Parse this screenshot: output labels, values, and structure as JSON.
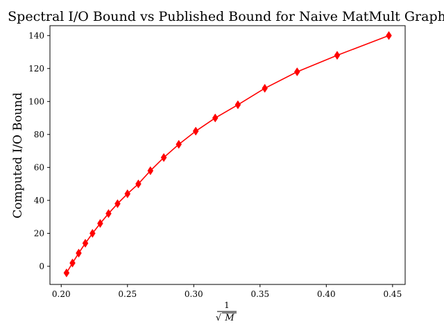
{
  "chart_data": {
    "type": "line",
    "title": "Spectral I/O Bound vs Published Bound for Naive MatMult Graph",
    "xlabel": {
      "numerator": "1",
      "denominator": "M",
      "radical": "√"
    },
    "ylabel": "Computed I/O Bound",
    "xlim": [
      0.1915,
      0.4595
    ],
    "ylim": [
      -11,
      146
    ],
    "xticks": [
      0.2,
      0.25,
      0.3,
      0.35,
      0.4,
      0.45
    ],
    "xtick_labels": [
      "0.20",
      "0.25",
      "0.30",
      "0.35",
      "0.40",
      "0.45"
    ],
    "yticks": [
      0,
      20,
      40,
      60,
      80,
      100,
      120,
      140
    ],
    "ytick_labels": [
      "0",
      "20",
      "40",
      "60",
      "80",
      "100",
      "120",
      "140"
    ],
    "grid": false,
    "series": [
      {
        "color": "#ff0000",
        "marker": "diamond",
        "x": [
          0.204,
          0.2085,
          0.2132,
          0.2182,
          0.2236,
          0.2294,
          0.2357,
          0.2425,
          0.25,
          0.2582,
          0.2673,
          0.2774,
          0.2887,
          0.3015,
          0.3162,
          0.3333,
          0.3536,
          0.378,
          0.4082,
          0.4472
        ],
        "y": [
          -4,
          2,
          8,
          14,
          20,
          26,
          32,
          38,
          44,
          50,
          58,
          66,
          74,
          82,
          90,
          98,
          108,
          118,
          128,
          140
        ]
      }
    ]
  }
}
